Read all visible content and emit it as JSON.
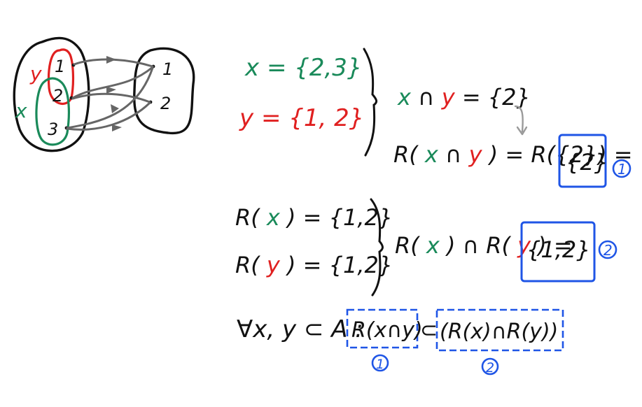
{
  "colors": {
    "ink": "#111111",
    "green": "#1a8a5a",
    "red": "#e02020",
    "blue": "#1f55e6",
    "gray": "#666666",
    "lightgray": "#9a9a9a",
    "background": "#ffffff"
  },
  "mapping": {
    "domain_elements": [
      "1",
      "2",
      "3"
    ],
    "codomain_elements": [
      "1",
      "2"
    ],
    "set_x_label": "x",
    "set_y_label": "y"
  },
  "definitions": {
    "x_name": "x",
    "x_rhs": "= {2,3}",
    "y_name": "y",
    "y_rhs": "= {1, 2}"
  },
  "intersection": {
    "x": "x",
    "cap": "∩",
    "y": "y",
    "rhs": "= {2}"
  },
  "image_of_intersection": {
    "prefix": "R(",
    "x": "x",
    "cap": "∩",
    "y": "y",
    "middle": ") = R({2}) =",
    "result": "{2}",
    "marker": "1"
  },
  "images": {
    "rx_prefix": "R(",
    "rx_var": "x",
    "rx_rhs": ") = {1,2}",
    "ry_prefix": "R(",
    "ry_var": "y",
    "ry_rhs": ") = {1,2}"
  },
  "intersection_of_images": {
    "part1": "R(",
    "x": "x",
    "part2": ") ∩ R(",
    "y": "y",
    "part3": ") =",
    "result": "{1,2}",
    "marker": "2"
  },
  "conclusion": {
    "prefix": "∀x, y ⊂ A :",
    "left": "R(x∩y)",
    "subset": "⊂",
    "right": "(R(x)∩R(y))",
    "marker_left": "1",
    "marker_right": "2"
  }
}
